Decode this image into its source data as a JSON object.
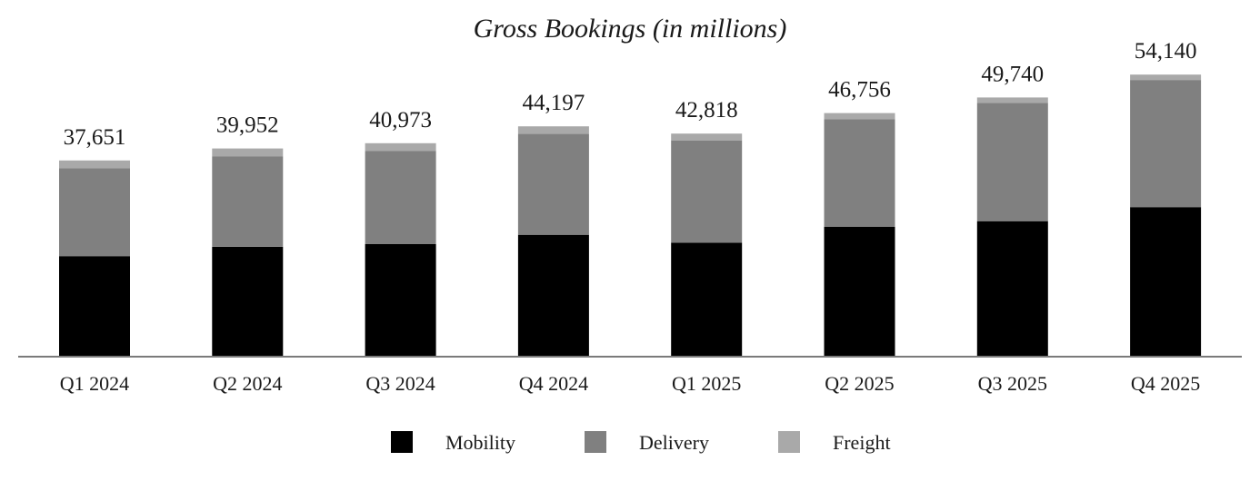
{
  "chart_data": {
    "type": "bar",
    "stacked": true,
    "title": "Gross Bookings (in millions)",
    "xlabel": "",
    "ylabel": "",
    "ylim": [
      0,
      58000
    ],
    "grid": false,
    "legend_position": "bottom",
    "categories": [
      "Q1 2024",
      "Q2 2024",
      "Q3 2024",
      "Q4 2024",
      "Q1 2025",
      "Q2 2025",
      "Q3 2025",
      "Q4 2025"
    ],
    "totals": [
      37651,
      39952,
      40973,
      44197,
      42818,
      46756,
      49740,
      54140
    ],
    "total_labels": [
      "37,651",
      "39,952",
      "40,973",
      "44,197",
      "42,818",
      "46,756",
      "49,740",
      "54,140"
    ],
    "series": [
      {
        "name": "Mobility",
        "color": "#000000",
        "values": [
          19300,
          21100,
          21600,
          23400,
          21900,
          24900,
          26000,
          28700
        ]
      },
      {
        "name": "Delivery",
        "color": "#808080",
        "values": [
          16900,
          17300,
          17900,
          19400,
          19600,
          20700,
          22700,
          24400
        ]
      },
      {
        "name": "Freight",
        "color": "#a9a9a9",
        "values": [
          1451,
          1552,
          1473,
          1397,
          1318,
          1156,
          1040,
          1040
        ]
      }
    ]
  }
}
